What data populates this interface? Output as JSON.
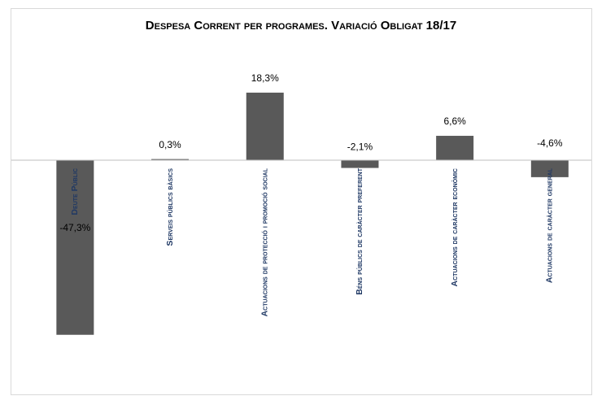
{
  "chart_data": {
    "type": "bar",
    "title": "Despesa Corrent per programes. Variació Obligat 18/17",
    "categories": [
      "Deute Públic",
      "Serveis públics bàsics",
      "Actuacions de protecció i promoció social",
      "Béns públics de caràcter preferent",
      "Actuacions de caràcter econòmic",
      "Actuacions de caràcter general"
    ],
    "values": [
      -47.3,
      0.3,
      18.3,
      -2.1,
      6.6,
      -4.6
    ],
    "value_labels": [
      "-47,3%",
      "0,3%",
      "18,3%",
      "-2,1%",
      "6,6%",
      "-4,6%"
    ],
    "color": "#595959"
  }
}
